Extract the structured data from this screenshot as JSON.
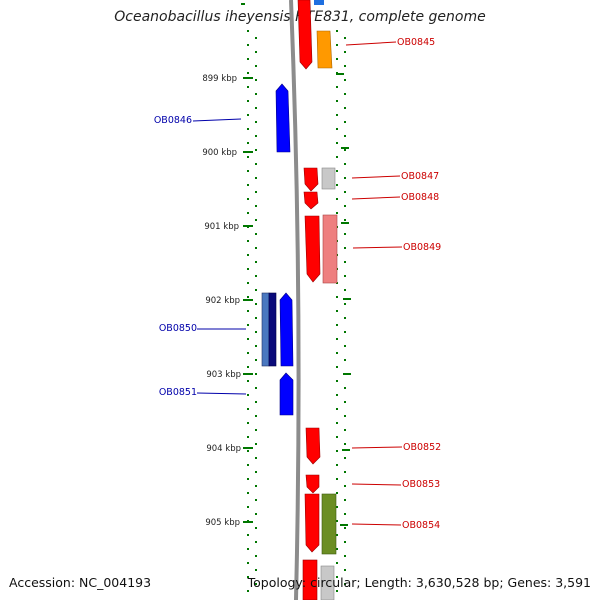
{
  "title": "Oceanobacillus iheyensis HTE831, complete genome",
  "footer": {
    "accession": "Accession: NC_004193",
    "summary": "Topology: circular; Length: 3,630,528 bp; Genes: 3,591"
  },
  "colors": {
    "forward": "#ff0000",
    "reverse": "#0000ff",
    "forward_label": "#cc0000",
    "reverse_label": "#0000aa",
    "backbone": "#888888",
    "ticks": "#007700"
  },
  "scale_ticks": [
    "899 kbp",
    "900 kbp",
    "901 kbp",
    "902 kbp",
    "903 kbp",
    "904 kbp",
    "905 kbp"
  ],
  "genes": [
    {
      "label": "OB0845",
      "strand": "forward"
    },
    {
      "label": "OB0846",
      "strand": "reverse"
    },
    {
      "label": "OB0847",
      "strand": "forward"
    },
    {
      "label": "OB0848",
      "strand": "forward"
    },
    {
      "label": "OB0849",
      "strand": "forward"
    },
    {
      "label": "OB0850",
      "strand": "reverse"
    },
    {
      "label": "OB0851",
      "strand": "reverse"
    },
    {
      "label": "OB0852",
      "strand": "forward"
    },
    {
      "label": "OB0853",
      "strand": "forward"
    },
    {
      "label": "OB0854",
      "strand": "forward"
    }
  ]
}
